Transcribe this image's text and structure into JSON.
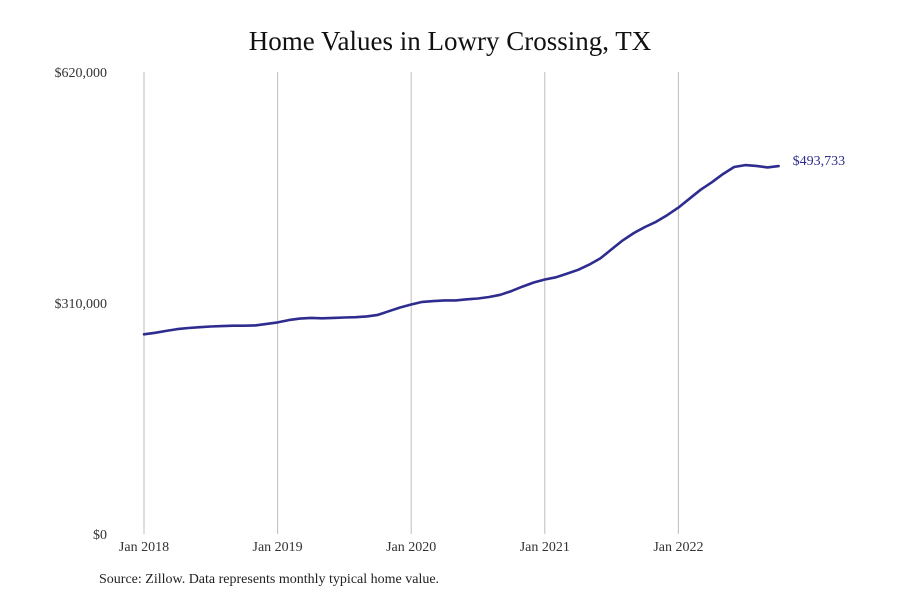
{
  "chart_data": {
    "type": "line",
    "title": "Home Values in Lowry Crossing, TX",
    "xlabel": "",
    "ylabel": "",
    "ylim": [
      0,
      620000
    ],
    "y_ticks": [
      0,
      310000,
      620000
    ],
    "y_tick_labels": [
      "$0",
      "$310,000",
      "$620,000"
    ],
    "x_ticks": [
      "2018-01",
      "2019-01",
      "2020-01",
      "2021-01",
      "2022-01"
    ],
    "x_tick_labels": [
      "Jan 2018",
      "Jan 2019",
      "Jan 2020",
      "Jan 2021",
      "Jan 2022"
    ],
    "xlim": [
      "2018-01",
      "2023-01"
    ],
    "grid": "vertical lines at x ticks",
    "series": [
      {
        "color": "#2e2d8f",
        "end_label": "$493,733",
        "x": [
          "2018-01",
          "2018-02",
          "2018-03",
          "2018-04",
          "2018-05",
          "2018-06",
          "2018-07",
          "2018-08",
          "2018-09",
          "2018-10",
          "2018-11",
          "2018-12",
          "2019-01",
          "2019-02",
          "2019-03",
          "2019-04",
          "2019-05",
          "2019-06",
          "2019-07",
          "2019-08",
          "2019-09",
          "2019-10",
          "2019-11",
          "2019-12",
          "2020-01",
          "2020-02",
          "2020-03",
          "2020-04",
          "2020-05",
          "2020-06",
          "2020-07",
          "2020-08",
          "2020-09",
          "2020-10",
          "2020-11",
          "2020-12",
          "2021-01",
          "2021-02",
          "2021-03",
          "2021-04",
          "2021-05",
          "2021-06",
          "2021-07",
          "2021-08",
          "2021-09",
          "2021-10",
          "2021-11",
          "2021-12",
          "2022-01",
          "2022-02",
          "2022-03",
          "2022-04",
          "2022-05",
          "2022-06",
          "2022-07",
          "2022-08",
          "2022-09",
          "2022-10"
        ],
        "y": [
          268000,
          270000,
          272500,
          275000,
          276500,
          277500,
          278500,
          279000,
          279500,
          279500,
          280000,
          282000,
          284000,
          287000,
          289000,
          290000,
          289500,
          290000,
          290500,
          291000,
          292000,
          294000,
          299000,
          304000,
          308000,
          311500,
          312500,
          313500,
          313500,
          315000,
          316000,
          318000,
          321000,
          326000,
          332000,
          337500,
          341500,
          344500,
          349500,
          354500,
          361500,
          370000,
          382000,
          394000,
          404000,
          412000,
          419000,
          428000,
          438000,
          450000,
          462000,
          472000,
          483000,
          492500,
          495000,
          494000,
          492000,
          493733
        ]
      }
    ]
  },
  "footer": {
    "source": "Source: Zillow. Data represents monthly typical home value."
  },
  "colors": {
    "line": "#2e2d8f",
    "grid": "#bdbdbd",
    "text": "#333333"
  }
}
